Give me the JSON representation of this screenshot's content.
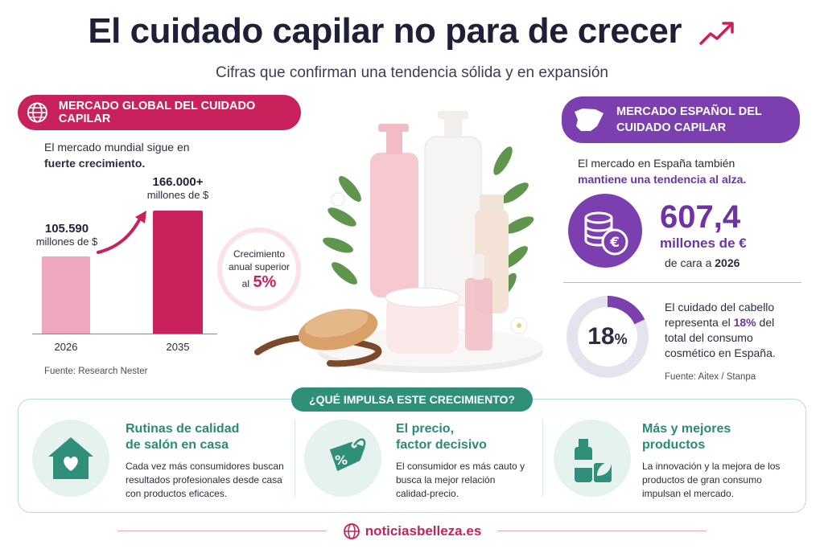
{
  "header": {
    "title": "El cuidado capilar no para de crecer",
    "subtitle": "Cifras que confirman una tendencia sólida y en expansión"
  },
  "global_market": {
    "heading": "MERCADO GLOBAL DEL CUIDADO CAPILAR",
    "intro_1": "El mercado mundial sigue en",
    "intro_2": "fuerte crecimiento.",
    "chart_data": {
      "type": "bar",
      "categories": [
        "2026",
        "2035"
      ],
      "values": [
        105590,
        166000
      ],
      "value_labels": [
        "105.590",
        "166.000+"
      ],
      "unit_label": "millones de $",
      "ylim": [
        0,
        200000
      ]
    },
    "growth_line_1": "Crecimiento",
    "growth_line_2": "anual superior",
    "growth_prefix": "al",
    "growth_value": "5%",
    "source": "Fuente: Research Nester"
  },
  "spain_market": {
    "heading_1": "MERCADO ESPAÑOL DEL",
    "heading_2": "CUIDADO CAPILAR",
    "intro_1": "El mercado en España también",
    "intro_2": "mantiene una tendencia al alza.",
    "value": "607,4",
    "unit": "millones de €",
    "year_prefix": "de cara a",
    "year": "2026",
    "share_value": "18",
    "share_suffix": "%",
    "share_fraction": 0.18,
    "share_text_1": "El cuidado del cabello",
    "share_text_2": "representa el",
    "share_text_hl": "18%",
    "share_text_3": "del",
    "share_text_4": "total del consumo",
    "share_text_5": "cosmético en España.",
    "source": "Fuente: Aitex / Stanpa"
  },
  "drivers": {
    "heading": "¿QUÉ IMPULSA ESTE CRECIMIENTO?",
    "items": [
      {
        "icon": "house-heart-icon",
        "title_1": "Rutinas de calidad",
        "title_2": "de salón en casa",
        "text_1": "Cada vez más consumidores buscan",
        "text_2": "resultados profesionales desde casa",
        "text_3": "con productos eficaces."
      },
      {
        "icon": "price-tag-icon",
        "title_1": "El precio,",
        "title_2": "factor decisivo",
        "text_1": "El consumidor es más cauto y",
        "text_2": "busca la mejor relación",
        "text_3": "calidad-precio."
      },
      {
        "icon": "products-leaf-icon",
        "title_1": "Más y mejores",
        "title_2": "productos",
        "text_1": "La innovación y la mejora de los",
        "text_2": "productos de gran consumo",
        "text_3": "impulsan el mercado."
      }
    ]
  },
  "footer": {
    "site": "noticiasbelleza.es"
  },
  "colors": {
    "pink_accent": "#c8215b",
    "pink_light": "#efa6bf",
    "purple_accent": "#7b3fb0",
    "green_accent": "#2f8f78"
  }
}
